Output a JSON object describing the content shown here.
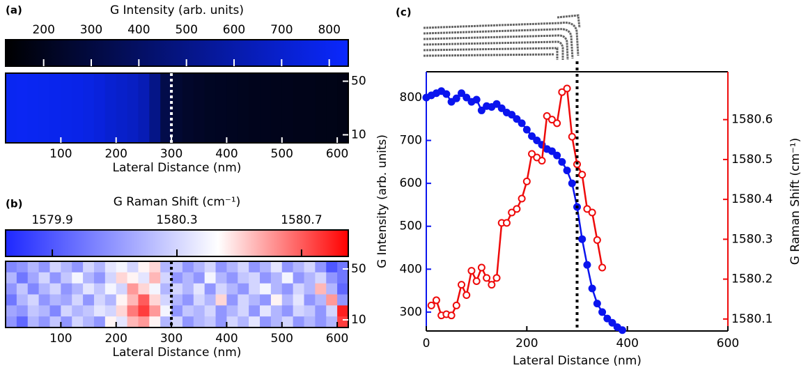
{
  "chart_data": [
    {
      "type": "heatmap",
      "panel_label": "(a)",
      "colorbar_label": "G Intensity (arb. units)",
      "clim": [
        120,
        840
      ],
      "colorbar_ticks": [
        200,
        300,
        400,
        500,
        600,
        700,
        800
      ],
      "colormap": [
        "#000000",
        "#0a28ff"
      ],
      "xlabel": "Lateral Distance (nm)",
      "xlim": [
        0,
        620
      ],
      "xticks": [
        100,
        200,
        300,
        400,
        500,
        600
      ],
      "ylim": [
        4,
        56
      ],
      "yticks": [
        10,
        50
      ],
      "marker_x": 300,
      "values": [
        [
          800,
          805,
          800,
          795,
          790,
          780,
          775,
          760,
          740,
          710,
          690,
          670,
          630,
          500,
          330,
          260,
          240,
          230,
          220,
          215,
          210,
          205,
          200,
          200,
          195,
          195,
          190,
          190,
          185,
          185,
          180
        ]
      ]
    },
    {
      "type": "heatmap",
      "panel_label": "(b)",
      "colorbar_label": "G Raman Shift (cm⁻¹)",
      "clim": [
        1579.75,
        1580.85
      ],
      "colorbar_ticks": [
        1579.9,
        1580.3,
        1580.7
      ],
      "colormap": [
        "#1e28ff",
        "#ffffff",
        "#ff0000"
      ],
      "xlabel": "Lateral Distance (nm)",
      "xlim": [
        0,
        620
      ],
      "xticks": [
        100,
        200,
        300,
        400,
        500,
        600
      ],
      "ylim": [
        4,
        56
      ],
      "yticks": [
        10,
        50
      ],
      "marker_x": 300,
      "values": [
        [
          1580.05,
          1580.1,
          1580.2,
          1580.1,
          1580.3,
          1580.2,
          1580.1,
          1580.3,
          1580.2,
          1580.35,
          1580.4,
          1580.3,
          1580.45,
          1580.5,
          1580.2,
          1580.25,
          1580.1,
          1580.2,
          1580.3,
          1580.1,
          1580.2,
          1580.3,
          1580.1,
          1580.2,
          1580.35,
          1580.1,
          1580.2,
          1580.3,
          1580.1,
          1579.9,
          1580.0
        ],
        [
          1580.2,
          1580.0,
          1580.15,
          1580.3,
          1580.1,
          1580.25,
          1580.4,
          1580.2,
          1580.1,
          1580.3,
          1580.5,
          1580.45,
          1580.35,
          1580.55,
          1580.3,
          1580.1,
          1580.2,
          1580.1,
          1580.4,
          1580.2,
          1580.1,
          1580.25,
          1580.3,
          1580.1,
          1580.2,
          1580.4,
          1580.1,
          1580.2,
          1580.3,
          1580.1,
          1580.0
        ],
        [
          1580.1,
          1580.25,
          1580.05,
          1580.2,
          1580.3,
          1580.1,
          1580.2,
          1580.35,
          1580.25,
          1580.4,
          1580.3,
          1580.6,
          1580.5,
          1580.4,
          1580.2,
          1580.3,
          1580.2,
          1580.35,
          1580.1,
          1580.3,
          1580.2,
          1580.1,
          1580.3,
          1580.4,
          1580.2,
          1580.1,
          1580.3,
          1580.2,
          1580.55,
          1580.2,
          1579.95
        ],
        [
          1580.0,
          1580.2,
          1580.3,
          1580.1,
          1580.2,
          1580.15,
          1580.3,
          1580.1,
          1580.3,
          1580.2,
          1580.45,
          1580.55,
          1580.7,
          1580.5,
          1580.3,
          1580.2,
          1580.1,
          1580.3,
          1580.2,
          1580.5,
          1580.1,
          1580.3,
          1580.2,
          1580.1,
          1580.45,
          1580.2,
          1580.35,
          1580.1,
          1580.2,
          1580.6,
          1580.1
        ],
        [
          1580.15,
          1580.1,
          1580.25,
          1580.2,
          1580.05,
          1580.3,
          1580.2,
          1580.25,
          1580.35,
          1580.3,
          1580.5,
          1580.65,
          1580.75,
          1580.6,
          1580.4,
          1580.1,
          1580.25,
          1580.2,
          1580.3,
          1580.1,
          1580.2,
          1580.3,
          1580.1,
          1580.35,
          1580.2,
          1580.1,
          1580.3,
          1580.25,
          1580.1,
          1580.3,
          1580.8
        ],
        [
          1580.1,
          1579.95,
          1580.2,
          1580.1,
          1580.25,
          1580.1,
          1580.3,
          1580.2,
          1580.1,
          1580.45,
          1580.35,
          1580.55,
          1580.6,
          1580.45,
          1580.2,
          1580.3,
          1580.1,
          1580.2,
          1580.25,
          1580.1,
          1580.3,
          1580.2,
          1580.35,
          1580.1,
          1580.2,
          1580.3,
          1580.1,
          1580.2,
          1580.1,
          1580.2,
          1580.75
        ]
      ]
    },
    {
      "type": "line",
      "panel_label": "(c)",
      "xlabel": "Lateral Distance (nm)",
      "ylabel": "G Intensity (arb. units)",
      "y2label": "G Raman Shift (cm⁻¹)",
      "xlim": [
        0,
        600
      ],
      "xticks": [
        0,
        200,
        400,
        600
      ],
      "ylim": [
        256,
        860
      ],
      "yticks": [
        300,
        400,
        500,
        600,
        700,
        800
      ],
      "y2lim": [
        1580.07,
        1580.72
      ],
      "y2ticks": [
        1580.1,
        1580.2,
        1580.3,
        1580.4,
        1580.5,
        1580.6
      ],
      "marker_x": 300,
      "series": [
        {
          "color": "#0a14ee",
          "x": [
            0,
            10,
            20,
            30,
            40,
            50,
            60,
            70,
            80,
            90,
            100,
            110,
            120,
            130,
            140,
            150,
            160,
            170,
            180,
            190,
            200,
            210,
            220,
            230,
            240,
            250,
            260,
            270,
            280,
            290,
            300,
            310,
            320,
            330,
            340,
            350,
            360,
            370,
            380,
            390
          ],
          "values": [
            800,
            805,
            810,
            815,
            808,
            790,
            798,
            810,
            800,
            790,
            795,
            770,
            780,
            778,
            785,
            775,
            765,
            760,
            750,
            740,
            725,
            710,
            700,
            690,
            680,
            675,
            665,
            650,
            630,
            600,
            545,
            470,
            410,
            355,
            320,
            300,
            285,
            275,
            265,
            258
          ]
        },
        {
          "color": "#ee0a0a",
          "axis": "y2",
          "x": [
            10,
            20,
            30,
            40,
            50,
            60,
            70,
            80,
            90,
            100,
            110,
            120,
            130,
            140,
            150,
            160,
            170,
            180,
            190,
            200,
            210,
            220,
            230,
            240,
            250,
            260,
            270,
            280,
            290,
            300,
            310,
            320,
            330,
            340,
            350
          ],
          "values": [
            1580.134,
            1580.147,
            1580.109,
            1580.112,
            1580.109,
            1580.134,
            1580.186,
            1580.16,
            1580.221,
            1580.195,
            1580.229,
            1580.203,
            1580.186,
            1580.203,
            1580.341,
            1580.341,
            1580.367,
            1580.376,
            1580.402,
            1580.445,
            1580.514,
            1580.505,
            1580.497,
            1580.609,
            1580.6,
            1580.591,
            1580.669,
            1580.678,
            1580.557,
            1580.488,
            1580.462,
            1580.376,
            1580.367,
            1580.298,
            1580.229
          ]
        }
      ]
    }
  ]
}
